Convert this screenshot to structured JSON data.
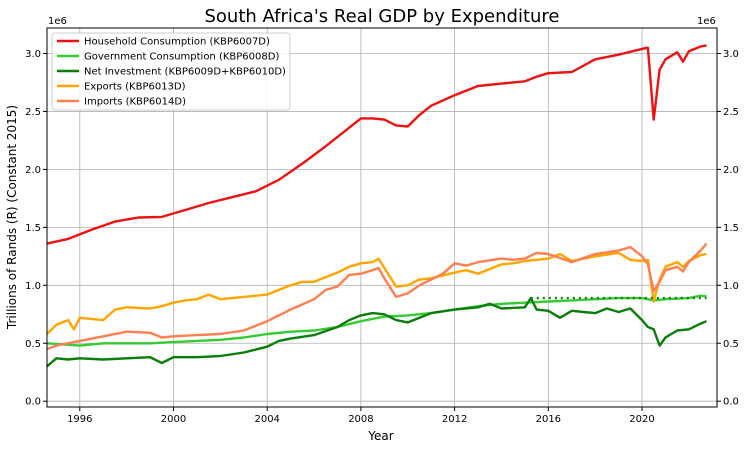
{
  "chart_data": {
    "type": "line",
    "title": "South Africa's Real GDP by Expenditure",
    "xlabel": "Year",
    "ylabel": "Trillions of Rands (R) (Constant 2015)",
    "y_offset_text": "1e6",
    "xlim": [
      1994.6,
      2023.2
    ],
    "ylim": [
      -50000,
      3220000
    ],
    "x_ticks": [
      1996,
      2000,
      2004,
      2008,
      2012,
      2016,
      2020
    ],
    "x_tick_labels": [
      "1996",
      "2000",
      "2004",
      "2008",
      "2012",
      "2016",
      "2020"
    ],
    "y_ticks": [
      0,
      500000,
      1000000,
      1500000,
      2000000,
      2500000,
      3000000
    ],
    "y_tick_labels": [
      "0.0",
      "0.5",
      "1.0",
      "1.5",
      "2.0",
      "2.5",
      "3.0"
    ],
    "right_axis": true,
    "grid": true,
    "legend_position": "top-left",
    "series": [
      {
        "name": "Household Consumption (KBP6007D)",
        "color": "#ee1111",
        "points": [
          [
            1994.6,
            1360000
          ],
          [
            1995.5,
            1400000
          ],
          [
            1996.5,
            1480000
          ],
          [
            1997.5,
            1550000
          ],
          [
            1998.5,
            1585000
          ],
          [
            1999.5,
            1590000
          ],
          [
            2000.5,
            1650000
          ],
          [
            2001.5,
            1710000
          ],
          [
            2002.5,
            1760000
          ],
          [
            2003.5,
            1810000
          ],
          [
            2004.5,
            1910000
          ],
          [
            2005.5,
            2050000
          ],
          [
            2006.5,
            2200000
          ],
          [
            2007.5,
            2360000
          ],
          [
            2008.0,
            2440000
          ],
          [
            2008.5,
            2440000
          ],
          [
            2009.0,
            2430000
          ],
          [
            2009.5,
            2380000
          ],
          [
            2010.0,
            2370000
          ],
          [
            2010.5,
            2470000
          ],
          [
            2011.0,
            2550000
          ],
          [
            2012.0,
            2640000
          ],
          [
            2013.0,
            2720000
          ],
          [
            2014.0,
            2740000
          ],
          [
            2015.0,
            2760000
          ],
          [
            2015.5,
            2800000
          ],
          [
            2016.0,
            2830000
          ],
          [
            2017.0,
            2840000
          ],
          [
            2018.0,
            2950000
          ],
          [
            2019.0,
            2990000
          ],
          [
            2020.0,
            3040000
          ],
          [
            2020.25,
            3050000
          ],
          [
            2020.5,
            2430000
          ],
          [
            2020.75,
            2860000
          ],
          [
            2021.0,
            2950000
          ],
          [
            2021.5,
            3010000
          ],
          [
            2021.75,
            2930000
          ],
          [
            2022.0,
            3020000
          ],
          [
            2022.5,
            3060000
          ],
          [
            2022.75,
            3070000
          ]
        ]
      },
      {
        "name": "Government Consumption (KBP6008D)",
        "color": "#33cc33",
        "points": [
          [
            1994.6,
            500000
          ],
          [
            1996.0,
            480000
          ],
          [
            1997.0,
            500000
          ],
          [
            1998.0,
            500000
          ],
          [
            1999.0,
            500000
          ],
          [
            2000.0,
            510000
          ],
          [
            2001.0,
            520000
          ],
          [
            2002.0,
            530000
          ],
          [
            2003.0,
            550000
          ],
          [
            2004.0,
            580000
          ],
          [
            2005.0,
            600000
          ],
          [
            2006.0,
            610000
          ],
          [
            2007.0,
            640000
          ],
          [
            2008.0,
            690000
          ],
          [
            2009.0,
            730000
          ],
          [
            2010.0,
            740000
          ],
          [
            2011.0,
            760000
          ],
          [
            2012.0,
            790000
          ],
          [
            2013.0,
            820000
          ],
          [
            2014.0,
            840000
          ],
          [
            2015.0,
            850000
          ],
          [
            2016.0,
            860000
          ],
          [
            2017.0,
            870000
          ],
          [
            2018.0,
            880000
          ],
          [
            2019.0,
            890000
          ],
          [
            2020.0,
            890000
          ],
          [
            2020.5,
            870000
          ],
          [
            2021.0,
            880000
          ],
          [
            2022.0,
            890000
          ],
          [
            2022.5,
            910000
          ],
          [
            2022.75,
            905000
          ]
        ]
      },
      {
        "name": "Net Investment (KBP6009D+KBP6010D)",
        "color": "#0a7d0a",
        "points": [
          [
            1994.6,
            300000
          ],
          [
            1995.0,
            370000
          ],
          [
            1995.5,
            360000
          ],
          [
            1996.0,
            370000
          ],
          [
            1997.0,
            360000
          ],
          [
            1998.0,
            370000
          ],
          [
            1999.0,
            380000
          ],
          [
            1999.5,
            330000
          ],
          [
            2000.0,
            380000
          ],
          [
            2001.0,
            380000
          ],
          [
            2002.0,
            390000
          ],
          [
            2003.0,
            420000
          ],
          [
            2004.0,
            470000
          ],
          [
            2004.5,
            520000
          ],
          [
            2005.0,
            540000
          ],
          [
            2006.0,
            570000
          ],
          [
            2007.0,
            640000
          ],
          [
            2007.5,
            700000
          ],
          [
            2008.0,
            740000
          ],
          [
            2008.5,
            760000
          ],
          [
            2009.0,
            750000
          ],
          [
            2009.5,
            700000
          ],
          [
            2010.0,
            680000
          ],
          [
            2011.0,
            760000
          ],
          [
            2012.0,
            790000
          ],
          [
            2013.0,
            810000
          ],
          [
            2013.5,
            840000
          ],
          [
            2014.0,
            800000
          ],
          [
            2015.0,
            810000
          ],
          [
            2015.25,
            890000
          ],
          [
            2015.5,
            790000
          ],
          [
            2016.0,
            780000
          ],
          [
            2016.5,
            720000
          ],
          [
            2017.0,
            780000
          ],
          [
            2017.5,
            770000
          ],
          [
            2018.0,
            760000
          ],
          [
            2018.5,
            800000
          ],
          [
            2019.0,
            770000
          ],
          [
            2019.5,
            800000
          ],
          [
            2020.0,
            700000
          ],
          [
            2020.25,
            640000
          ],
          [
            2020.5,
            620000
          ],
          [
            2020.75,
            480000
          ],
          [
            2021.0,
            550000
          ],
          [
            2021.5,
            610000
          ],
          [
            2022.0,
            620000
          ],
          [
            2022.5,
            670000
          ],
          [
            2022.75,
            690000
          ]
        ]
      },
      {
        "name": "Exports (KBP6013D)",
        "color": "#ffa500",
        "points": [
          [
            1994.6,
            580000
          ],
          [
            1995.0,
            660000
          ],
          [
            1995.5,
            700000
          ],
          [
            1995.75,
            620000
          ],
          [
            1996.0,
            720000
          ],
          [
            1997.0,
            700000
          ],
          [
            1997.5,
            790000
          ],
          [
            1998.0,
            810000
          ],
          [
            1999.0,
            800000
          ],
          [
            1999.5,
            820000
          ],
          [
            2000.0,
            850000
          ],
          [
            2000.5,
            870000
          ],
          [
            2001.0,
            880000
          ],
          [
            2001.5,
            920000
          ],
          [
            2002.0,
            880000
          ],
          [
            2003.0,
            900000
          ],
          [
            2004.0,
            920000
          ],
          [
            2004.5,
            960000
          ],
          [
            2005.0,
            1000000
          ],
          [
            2005.5,
            1030000
          ],
          [
            2006.0,
            1030000
          ],
          [
            2007.0,
            1110000
          ],
          [
            2007.5,
            1160000
          ],
          [
            2008.0,
            1190000
          ],
          [
            2008.5,
            1200000
          ],
          [
            2008.75,
            1230000
          ],
          [
            2009.0,
            1150000
          ],
          [
            2009.5,
            990000
          ],
          [
            2010.0,
            1000000
          ],
          [
            2010.5,
            1050000
          ],
          [
            2011.0,
            1060000
          ],
          [
            2012.0,
            1110000
          ],
          [
            2012.5,
            1130000
          ],
          [
            2013.0,
            1100000
          ],
          [
            2014.0,
            1180000
          ],
          [
            2014.5,
            1190000
          ],
          [
            2015.0,
            1210000
          ],
          [
            2016.0,
            1230000
          ],
          [
            2016.5,
            1270000
          ],
          [
            2017.0,
            1210000
          ],
          [
            2018.0,
            1250000
          ],
          [
            2019.0,
            1280000
          ],
          [
            2019.5,
            1220000
          ],
          [
            2020.0,
            1210000
          ],
          [
            2020.25,
            1220000
          ],
          [
            2020.5,
            860000
          ],
          [
            2020.75,
            1050000
          ],
          [
            2021.0,
            1160000
          ],
          [
            2021.5,
            1200000
          ],
          [
            2021.75,
            1160000
          ],
          [
            2022.0,
            1210000
          ],
          [
            2022.5,
            1260000
          ],
          [
            2022.75,
            1270000
          ]
        ]
      },
      {
        "name": "Imports (KBP6014D)",
        "color": "#ff7f50",
        "points": [
          [
            1994.6,
            450000
          ],
          [
            1995.0,
            480000
          ],
          [
            1996.0,
            520000
          ],
          [
            1997.0,
            560000
          ],
          [
            1998.0,
            600000
          ],
          [
            1999.0,
            590000
          ],
          [
            1999.5,
            550000
          ],
          [
            2000.0,
            560000
          ],
          [
            2001.0,
            570000
          ],
          [
            2002.0,
            580000
          ],
          [
            2003.0,
            610000
          ],
          [
            2004.0,
            690000
          ],
          [
            2005.0,
            790000
          ],
          [
            2006.0,
            880000
          ],
          [
            2006.5,
            960000
          ],
          [
            2007.0,
            990000
          ],
          [
            2007.5,
            1090000
          ],
          [
            2008.0,
            1100000
          ],
          [
            2008.5,
            1130000
          ],
          [
            2008.75,
            1150000
          ],
          [
            2009.0,
            1060000
          ],
          [
            2009.5,
            900000
          ],
          [
            2010.0,
            930000
          ],
          [
            2010.5,
            1000000
          ],
          [
            2011.0,
            1050000
          ],
          [
            2011.5,
            1100000
          ],
          [
            2012.0,
            1190000
          ],
          [
            2012.5,
            1170000
          ],
          [
            2013.0,
            1200000
          ],
          [
            2014.0,
            1230000
          ],
          [
            2014.5,
            1220000
          ],
          [
            2015.0,
            1230000
          ],
          [
            2015.5,
            1280000
          ],
          [
            2016.0,
            1270000
          ],
          [
            2017.0,
            1200000
          ],
          [
            2018.0,
            1270000
          ],
          [
            2019.0,
            1300000
          ],
          [
            2019.5,
            1330000
          ],
          [
            2020.0,
            1250000
          ],
          [
            2020.25,
            1180000
          ],
          [
            2020.5,
            950000
          ],
          [
            2020.75,
            1030000
          ],
          [
            2021.0,
            1130000
          ],
          [
            2021.5,
            1160000
          ],
          [
            2021.75,
            1120000
          ],
          [
            2022.0,
            1200000
          ],
          [
            2022.5,
            1300000
          ],
          [
            2022.75,
            1360000
          ]
        ]
      }
    ],
    "annotations": [
      {
        "type": "dotted-line",
        "color": "#0a7d0a",
        "points": [
          [
            2015.25,
            890000
          ],
          [
            2022.75,
            890000
          ]
        ]
      }
    ]
  }
}
